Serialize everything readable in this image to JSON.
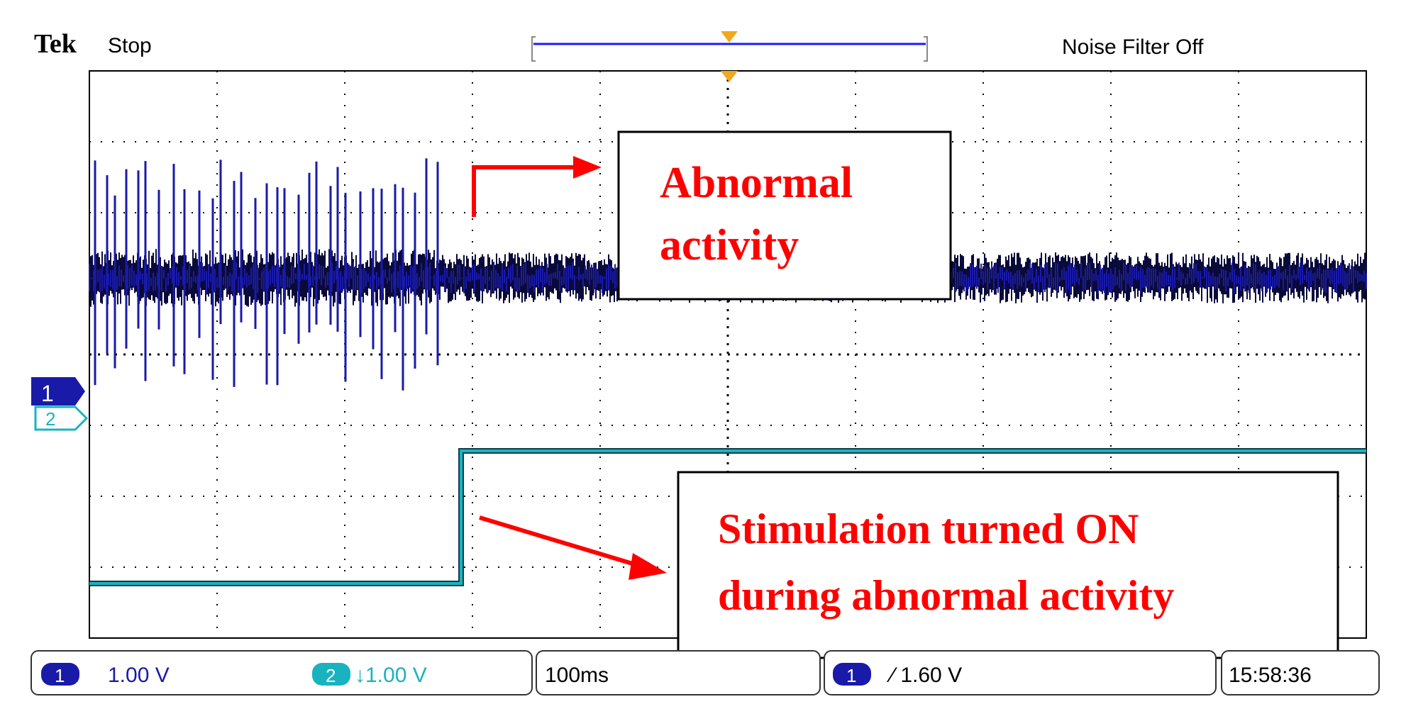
{
  "header": {
    "brand": "Tek",
    "run_state": "Stop",
    "noise_filter": "Noise Filter Off"
  },
  "channels": {
    "ch1_marker": "1",
    "ch2_marker": "2"
  },
  "annotations": {
    "abnormal_line1": "Abnormal",
    "abnormal_line2": "activity",
    "stim_line1": "Stimulation turned ON",
    "stim_line2": "during abnormal activity"
  },
  "status_bar": {
    "ch1_badge": "1",
    "ch1_scale": "1.00 V",
    "ch2_badge": "2",
    "ch2_scale": "↓1.00 V",
    "timebase": "100ms",
    "trigger_badge": "1",
    "trigger_level": "∕ 1.60 V",
    "clock": "15:58:36"
  },
  "colors": {
    "ch1": "#1a1aa8",
    "ch1_dark": "#0a0a3a",
    "ch2": "#19b3bf",
    "annotation": "#ff0000",
    "grid_dots": "#000000",
    "marker_orange": "#f2a81d"
  }
}
